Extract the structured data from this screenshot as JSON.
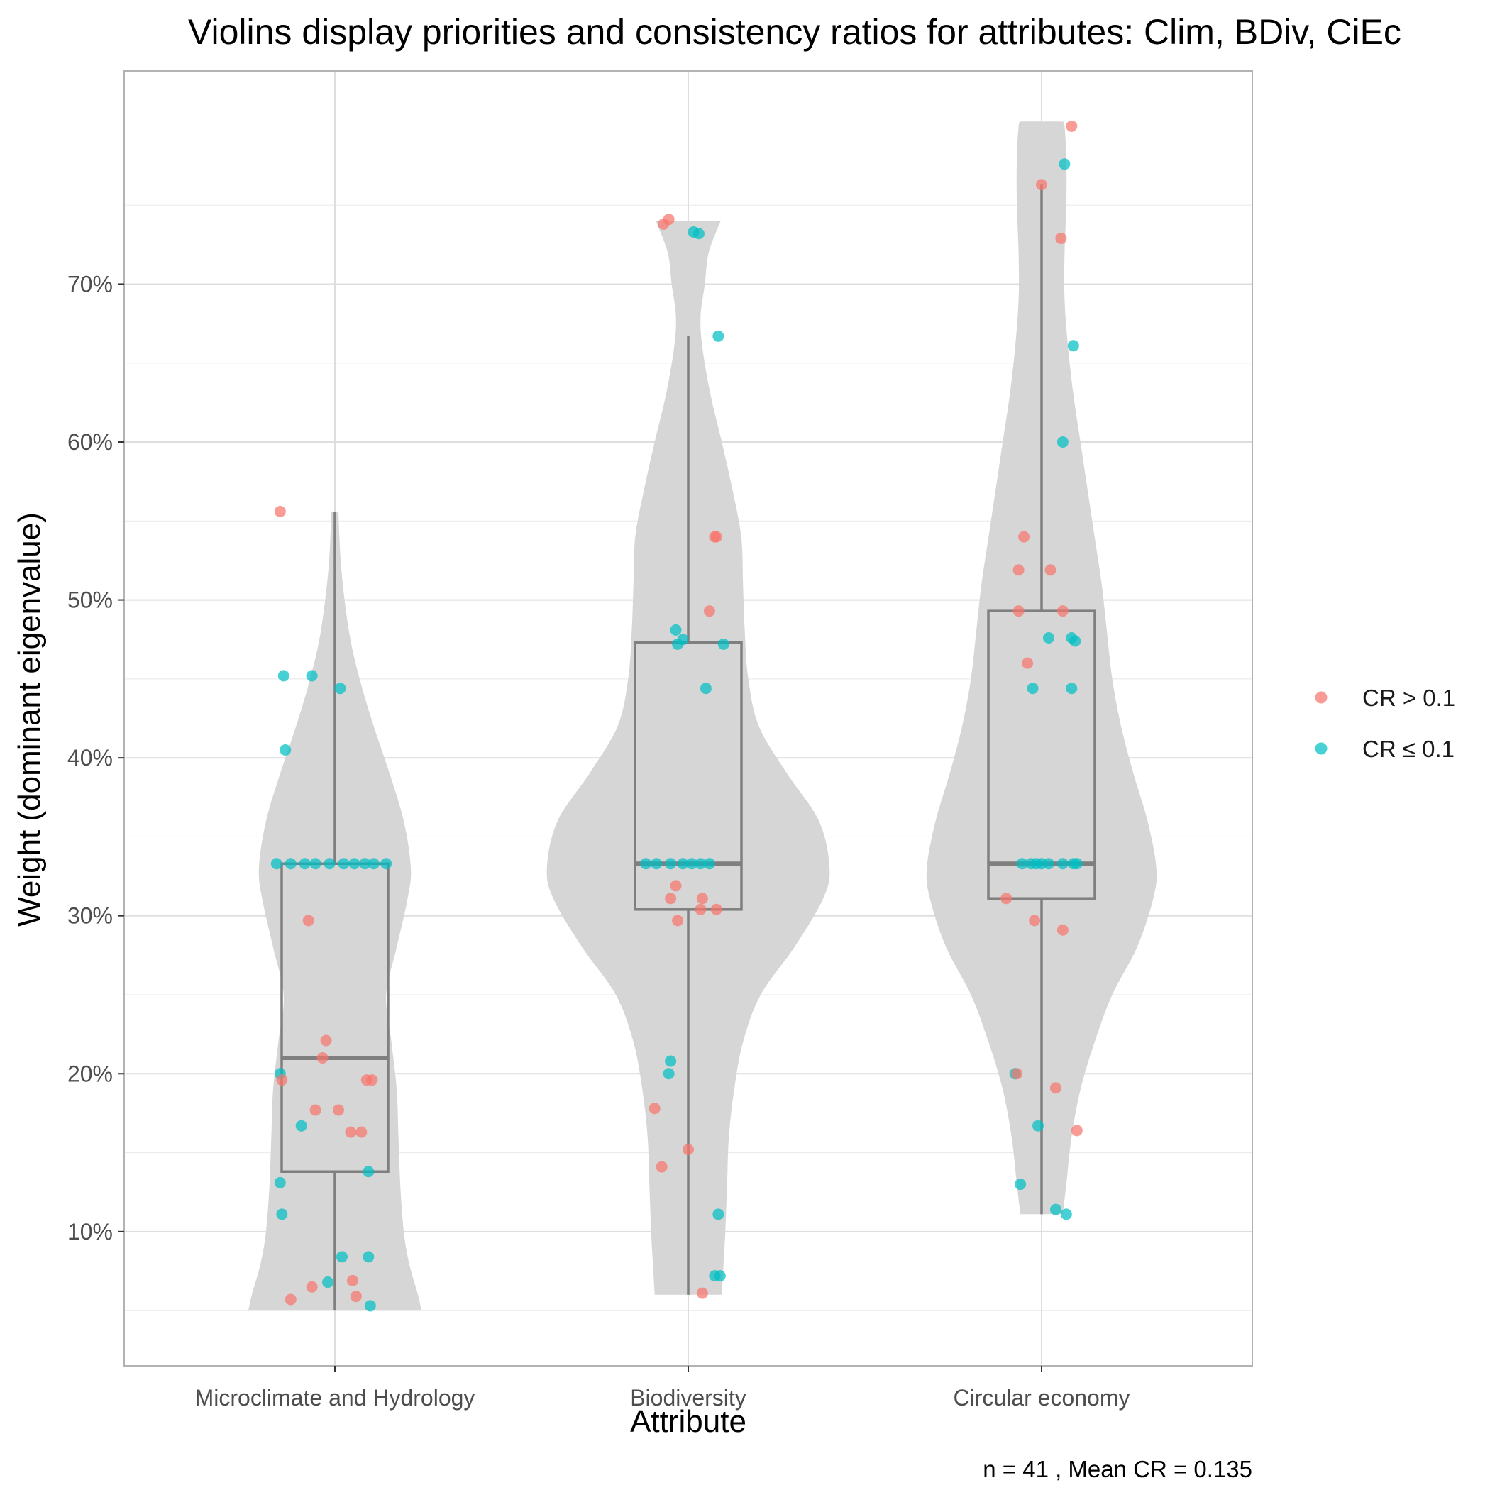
{
  "chart_data": {
    "type": "violin",
    "title": "Violins display priorities and consistency ratios for attributes: Clim, BDiv, CiEc",
    "xlabel": "Attribute",
    "ylabel": "Weight (dominant eigenvalue)",
    "caption": "n = 41 , Mean CR = 0.135",
    "ylim": [
      0.015,
      0.835
    ],
    "y_ticks": [
      0.1,
      0.2,
      0.3,
      0.4,
      0.5,
      0.6,
      0.7
    ],
    "y_tick_labels": [
      "10%",
      "20%",
      "30%",
      "40%",
      "50%",
      "60%",
      "70%"
    ],
    "grid": true,
    "legend_position": "right",
    "legend": [
      {
        "key": "high",
        "label": "CR > 0.1",
        "color": "#F8766D"
      },
      {
        "key": "low",
        "label": "CR ≤ 0.1",
        "color": "#00BFC4"
      }
    ],
    "violin_color": "#d6d6d6",
    "box_color": "#7f7f7f",
    "categories": [
      {
        "name": "Microclimate and Hydrology",
        "box": {
          "q1": 0.138,
          "median": 0.21,
          "q3": 0.333,
          "whisker_low": 0.05,
          "whisker_high": 0.556
        },
        "violin": [
          [
            0.05,
            0.245
          ],
          [
            0.06,
            0.235
          ],
          [
            0.08,
            0.21
          ],
          [
            0.1,
            0.195
          ],
          [
            0.13,
            0.185
          ],
          [
            0.16,
            0.18
          ],
          [
            0.19,
            0.175
          ],
          [
            0.22,
            0.16
          ],
          [
            0.25,
            0.145
          ],
          [
            0.28,
            0.175
          ],
          [
            0.31,
            0.205
          ],
          [
            0.33,
            0.215
          ],
          [
            0.36,
            0.195
          ],
          [
            0.39,
            0.155
          ],
          [
            0.42,
            0.11
          ],
          [
            0.45,
            0.07
          ],
          [
            0.48,
            0.04
          ],
          [
            0.52,
            0.018
          ],
          [
            0.556,
            0.01
          ]
        ],
        "points": [
          {
            "x": -0.155,
            "y": 0.556,
            "cr": "high"
          },
          {
            "x": -0.145,
            "y": 0.452,
            "cr": "low"
          },
          {
            "x": -0.065,
            "y": 0.452,
            "cr": "low"
          },
          {
            "x": 0.015,
            "y": 0.444,
            "cr": "low"
          },
          {
            "x": -0.14,
            "y": 0.405,
            "cr": "low"
          },
          {
            "x": -0.165,
            "y": 0.333,
            "cr": "low"
          },
          {
            "x": -0.125,
            "y": 0.333,
            "cr": "low"
          },
          {
            "x": -0.085,
            "y": 0.333,
            "cr": "low"
          },
          {
            "x": -0.055,
            "y": 0.333,
            "cr": "low"
          },
          {
            "x": -0.015,
            "y": 0.333,
            "cr": "low"
          },
          {
            "x": 0.025,
            "y": 0.333,
            "cr": "low"
          },
          {
            "x": 0.055,
            "y": 0.333,
            "cr": "low"
          },
          {
            "x": 0.085,
            "y": 0.333,
            "cr": "low"
          },
          {
            "x": 0.11,
            "y": 0.333,
            "cr": "low"
          },
          {
            "x": 0.145,
            "y": 0.333,
            "cr": "low"
          },
          {
            "x": -0.075,
            "y": 0.297,
            "cr": "high"
          },
          {
            "x": -0.025,
            "y": 0.221,
            "cr": "high"
          },
          {
            "x": -0.035,
            "y": 0.21,
            "cr": "high"
          },
          {
            "x": -0.155,
            "y": 0.2,
            "cr": "low"
          },
          {
            "x": -0.15,
            "y": 0.196,
            "cr": "high"
          },
          {
            "x": 0.09,
            "y": 0.196,
            "cr": "high"
          },
          {
            "x": 0.105,
            "y": 0.196,
            "cr": "high"
          },
          {
            "x": -0.055,
            "y": 0.177,
            "cr": "high"
          },
          {
            "x": 0.01,
            "y": 0.177,
            "cr": "high"
          },
          {
            "x": -0.095,
            "y": 0.167,
            "cr": "low"
          },
          {
            "x": 0.045,
            "y": 0.163,
            "cr": "high"
          },
          {
            "x": 0.075,
            "y": 0.163,
            "cr": "high"
          },
          {
            "x": 0.095,
            "y": 0.138,
            "cr": "low"
          },
          {
            "x": -0.155,
            "y": 0.131,
            "cr": "low"
          },
          {
            "x": -0.15,
            "y": 0.111,
            "cr": "low"
          },
          {
            "x": 0.02,
            "y": 0.084,
            "cr": "low"
          },
          {
            "x": 0.095,
            "y": 0.084,
            "cr": "low"
          },
          {
            "x": 0.05,
            "y": 0.069,
            "cr": "high"
          },
          {
            "x": -0.02,
            "y": 0.068,
            "cr": "low"
          },
          {
            "x": -0.065,
            "y": 0.065,
            "cr": "high"
          },
          {
            "x": 0.06,
            "y": 0.059,
            "cr": "high"
          },
          {
            "x": -0.125,
            "y": 0.057,
            "cr": "high"
          },
          {
            "x": 0.1,
            "y": 0.053,
            "cr": "low"
          }
        ]
      },
      {
        "name": "Biodiversity",
        "box": {
          "q1": 0.304,
          "median": 0.333,
          "q3": 0.473,
          "whisker_low": 0.06,
          "whisker_high": 0.667
        },
        "violin": [
          [
            0.06,
            0.095
          ],
          [
            0.08,
            0.1
          ],
          [
            0.1,
            0.105
          ],
          [
            0.13,
            0.11
          ],
          [
            0.16,
            0.115
          ],
          [
            0.19,
            0.13
          ],
          [
            0.22,
            0.155
          ],
          [
            0.25,
            0.205
          ],
          [
            0.28,
            0.3
          ],
          [
            0.31,
            0.38
          ],
          [
            0.33,
            0.4
          ],
          [
            0.36,
            0.37
          ],
          [
            0.39,
            0.28
          ],
          [
            0.42,
            0.2
          ],
          [
            0.45,
            0.17
          ],
          [
            0.48,
            0.16
          ],
          [
            0.51,
            0.155
          ],
          [
            0.54,
            0.15
          ],
          [
            0.57,
            0.125
          ],
          [
            0.6,
            0.095
          ],
          [
            0.63,
            0.063
          ],
          [
            0.66,
            0.04
          ],
          [
            0.68,
            0.035
          ],
          [
            0.7,
            0.047
          ],
          [
            0.72,
            0.058
          ],
          [
            0.74,
            0.092
          ]
        ],
        "points": [
          {
            "x": -0.07,
            "y": 0.738,
            "cr": "high"
          },
          {
            "x": -0.055,
            "y": 0.741,
            "cr": "high"
          },
          {
            "x": 0.015,
            "y": 0.733,
            "cr": "low"
          },
          {
            "x": 0.03,
            "y": 0.732,
            "cr": "low"
          },
          {
            "x": 0.085,
            "y": 0.667,
            "cr": "low"
          },
          {
            "x": 0.075,
            "y": 0.54,
            "cr": "high"
          },
          {
            "x": 0.08,
            "y": 0.54,
            "cr": "high"
          },
          {
            "x": 0.06,
            "y": 0.493,
            "cr": "high"
          },
          {
            "x": -0.035,
            "y": 0.481,
            "cr": "low"
          },
          {
            "x": -0.015,
            "y": 0.475,
            "cr": "low"
          },
          {
            "x": -0.03,
            "y": 0.472,
            "cr": "low"
          },
          {
            "x": 0.1,
            "y": 0.472,
            "cr": "low"
          },
          {
            "x": 0.05,
            "y": 0.444,
            "cr": "low"
          },
          {
            "x": -0.12,
            "y": 0.333,
            "cr": "low"
          },
          {
            "x": -0.09,
            "y": 0.333,
            "cr": "low"
          },
          {
            "x": -0.05,
            "y": 0.333,
            "cr": "low"
          },
          {
            "x": -0.015,
            "y": 0.333,
            "cr": "low"
          },
          {
            "x": 0.01,
            "y": 0.333,
            "cr": "low"
          },
          {
            "x": 0.035,
            "y": 0.333,
            "cr": "low"
          },
          {
            "x": 0.06,
            "y": 0.333,
            "cr": "low"
          },
          {
            "x": -0.035,
            "y": 0.319,
            "cr": "high"
          },
          {
            "x": -0.05,
            "y": 0.311,
            "cr": "high"
          },
          {
            "x": 0.04,
            "y": 0.311,
            "cr": "high"
          },
          {
            "x": 0.035,
            "y": 0.304,
            "cr": "high"
          },
          {
            "x": 0.08,
            "y": 0.304,
            "cr": "high"
          },
          {
            "x": -0.03,
            "y": 0.297,
            "cr": "high"
          },
          {
            "x": -0.05,
            "y": 0.208,
            "cr": "low"
          },
          {
            "x": -0.055,
            "y": 0.2,
            "cr": "low"
          },
          {
            "x": -0.095,
            "y": 0.178,
            "cr": "high"
          },
          {
            "x": 0.0,
            "y": 0.152,
            "cr": "high"
          },
          {
            "x": -0.075,
            "y": 0.141,
            "cr": "high"
          },
          {
            "x": 0.085,
            "y": 0.111,
            "cr": "low"
          },
          {
            "x": 0.075,
            "y": 0.072,
            "cr": "low"
          },
          {
            "x": 0.09,
            "y": 0.072,
            "cr": "low"
          },
          {
            "x": 0.04,
            "y": 0.061,
            "cr": "high"
          }
        ]
      },
      {
        "name": "Circular economy",
        "box": {
          "q1": 0.311,
          "median": 0.333,
          "q3": 0.493,
          "whisker_low": 0.111,
          "whisker_high": 0.763
        },
        "violin": [
          [
            0.111,
            0.06
          ],
          [
            0.13,
            0.07
          ],
          [
            0.16,
            0.085
          ],
          [
            0.19,
            0.11
          ],
          [
            0.22,
            0.15
          ],
          [
            0.25,
            0.2
          ],
          [
            0.28,
            0.27
          ],
          [
            0.31,
            0.315
          ],
          [
            0.33,
            0.325
          ],
          [
            0.36,
            0.3
          ],
          [
            0.39,
            0.26
          ],
          [
            0.42,
            0.225
          ],
          [
            0.45,
            0.2
          ],
          [
            0.48,
            0.185
          ],
          [
            0.51,
            0.17
          ],
          [
            0.54,
            0.15
          ],
          [
            0.57,
            0.13
          ],
          [
            0.6,
            0.11
          ],
          [
            0.63,
            0.09
          ],
          [
            0.66,
            0.075
          ],
          [
            0.69,
            0.065
          ],
          [
            0.72,
            0.065
          ],
          [
            0.75,
            0.07
          ],
          [
            0.78,
            0.07
          ],
          [
            0.8,
            0.065
          ],
          [
            0.803,
            0.06
          ]
        ],
        "points": [
          {
            "x": 0.085,
            "y": 0.8,
            "cr": "high"
          },
          {
            "x": 0.065,
            "y": 0.776,
            "cr": "low"
          },
          {
            "x": 0.0,
            "y": 0.763,
            "cr": "high"
          },
          {
            "x": 0.055,
            "y": 0.729,
            "cr": "high"
          },
          {
            "x": 0.09,
            "y": 0.661,
            "cr": "low"
          },
          {
            "x": 0.06,
            "y": 0.6,
            "cr": "low"
          },
          {
            "x": -0.05,
            "y": 0.54,
            "cr": "high"
          },
          {
            "x": -0.065,
            "y": 0.519,
            "cr": "high"
          },
          {
            "x": 0.025,
            "y": 0.519,
            "cr": "high"
          },
          {
            "x": -0.065,
            "y": 0.493,
            "cr": "high"
          },
          {
            "x": 0.06,
            "y": 0.493,
            "cr": "high"
          },
          {
            "x": 0.02,
            "y": 0.476,
            "cr": "low"
          },
          {
            "x": 0.085,
            "y": 0.476,
            "cr": "low"
          },
          {
            "x": 0.095,
            "y": 0.474,
            "cr": "low"
          },
          {
            "x": -0.04,
            "y": 0.46,
            "cr": "high"
          },
          {
            "x": -0.025,
            "y": 0.444,
            "cr": "low"
          },
          {
            "x": 0.085,
            "y": 0.444,
            "cr": "low"
          },
          {
            "x": -0.055,
            "y": 0.333,
            "cr": "low"
          },
          {
            "x": -0.03,
            "y": 0.333,
            "cr": "low"
          },
          {
            "x": -0.015,
            "y": 0.333,
            "cr": "low"
          },
          {
            "x": 0.0,
            "y": 0.333,
            "cr": "low"
          },
          {
            "x": 0.02,
            "y": 0.333,
            "cr": "low"
          },
          {
            "x": 0.06,
            "y": 0.333,
            "cr": "low"
          },
          {
            "x": 0.09,
            "y": 0.333,
            "cr": "low"
          },
          {
            "x": 0.1,
            "y": 0.333,
            "cr": "low"
          },
          {
            "x": -0.1,
            "y": 0.311,
            "cr": "high"
          },
          {
            "x": -0.02,
            "y": 0.297,
            "cr": "high"
          },
          {
            "x": 0.06,
            "y": 0.291,
            "cr": "high"
          },
          {
            "x": -0.075,
            "y": 0.2,
            "cr": "low"
          },
          {
            "x": -0.07,
            "y": 0.2,
            "cr": "high"
          },
          {
            "x": 0.04,
            "y": 0.191,
            "cr": "high"
          },
          {
            "x": -0.01,
            "y": 0.167,
            "cr": "low"
          },
          {
            "x": 0.1,
            "y": 0.164,
            "cr": "high"
          },
          {
            "x": -0.06,
            "y": 0.13,
            "cr": "low"
          },
          {
            "x": 0.04,
            "y": 0.114,
            "cr": "low"
          },
          {
            "x": 0.07,
            "y": 0.111,
            "cr": "low"
          }
        ]
      }
    ]
  }
}
